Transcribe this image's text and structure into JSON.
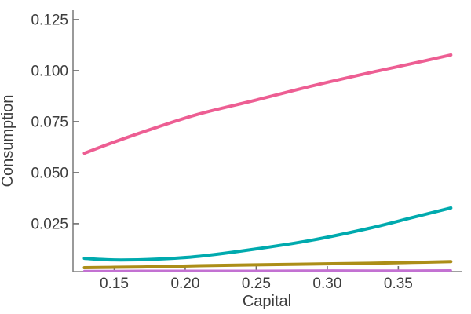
{
  "chart_data": {
    "type": "line",
    "title": "",
    "xlabel": "Capital",
    "ylabel": "Consumption",
    "xlim": [
      0.121,
      0.394
    ],
    "ylim": [
      0.0015,
      0.1296
    ],
    "grid": false,
    "legend": "none",
    "axis_color": "#808080",
    "tick_color": "#6e6e6e",
    "text_color": "#3d3d3d",
    "x_ticks": {
      "values": [
        0.15,
        0.2,
        0.25,
        0.3,
        0.35
      ],
      "labels": [
        "0.15",
        "0.20",
        "0.25",
        "0.30",
        "0.35"
      ]
    },
    "y_ticks": {
      "values": [
        0.025,
        0.05,
        0.075,
        0.1,
        0.125
      ],
      "labels": [
        "0.025",
        "0.050",
        "0.075",
        "0.100",
        "0.125"
      ]
    },
    "x": [
      0.129,
      0.15,
      0.18,
      0.21,
      0.25,
      0.29,
      0.33,
      0.36,
      0.387
    ],
    "series": [
      {
        "name": "pink",
        "color": "#ED5E93",
        "width": 4,
        "values": [
          0.0595,
          0.065,
          0.0722,
          0.0788,
          0.0856,
          0.0926,
          0.099,
          0.1035,
          0.1077
        ]
      },
      {
        "name": "teal",
        "color": "#00AAAE",
        "width": 4,
        "values": [
          0.008,
          0.0072,
          0.0076,
          0.009,
          0.0126,
          0.017,
          0.0228,
          0.028,
          0.0327
        ]
      },
      {
        "name": "olive",
        "color": "#AC8E18",
        "width": 4,
        "values": [
          0.0034,
          0.0036,
          0.0039,
          0.0044,
          0.0048,
          0.0052,
          0.0056,
          0.006,
          0.0064
        ]
      },
      {
        "name": "purple",
        "color": "#C371D2",
        "width": 3,
        "values": [
          0.0018,
          0.0018,
          0.0019,
          0.0019,
          0.0019,
          0.002,
          0.002,
          0.002,
          0.0021
        ]
      }
    ]
  }
}
